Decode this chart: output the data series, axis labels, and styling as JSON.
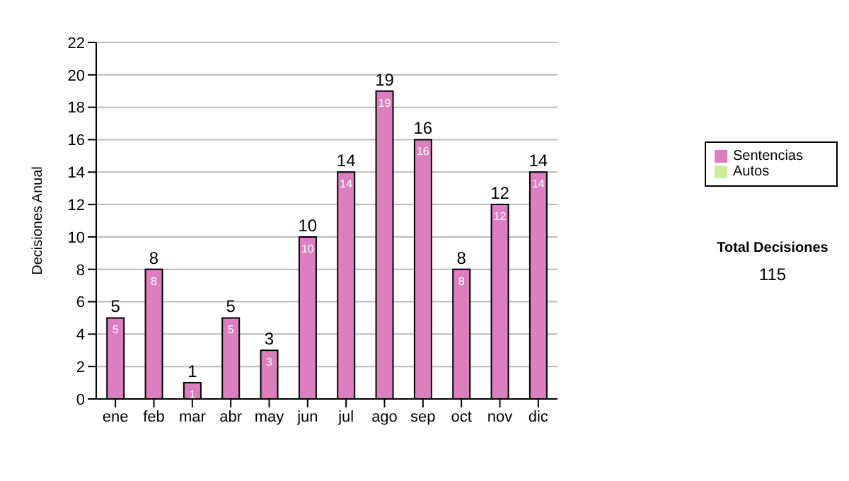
{
  "chart_data": {
    "type": "bar",
    "ylabel": "Decisiones Anual",
    "categories": [
      "ene",
      "feb",
      "mar",
      "abr",
      "may",
      "jun",
      "jul",
      "ago",
      "sep",
      "oct",
      "nov",
      "dic"
    ],
    "series": [
      {
        "name": "Sentencias",
        "color": "#dd7fbf",
        "values": [
          5,
          8,
          1,
          5,
          3,
          10,
          14,
          19,
          16,
          8,
          12,
          14
        ],
        "value_labels": [
          "5",
          "8",
          "1",
          "5",
          "3",
          "10",
          "14",
          "19",
          "16",
          "8",
          "12",
          "14"
        ]
      },
      {
        "name": "Autos",
        "color": "#ccee99",
        "values": [
          0,
          0,
          0,
          0,
          0,
          0,
          0,
          0,
          0,
          0,
          0,
          0
        ]
      }
    ],
    "stacked": true,
    "totals": [
      "5",
      "8",
      "1",
      "5",
      "3",
      "10",
      "14",
      "19",
      "16",
      "8",
      "12",
      "14"
    ],
    "ylim": [
      0,
      22
    ],
    "yticks": [
      0,
      2,
      4,
      6,
      8,
      10,
      12,
      14,
      16,
      18,
      20,
      22
    ],
    "grid": "y",
    "legend": "right",
    "annotations": [
      "Total Decisiones",
      "115"
    ]
  }
}
